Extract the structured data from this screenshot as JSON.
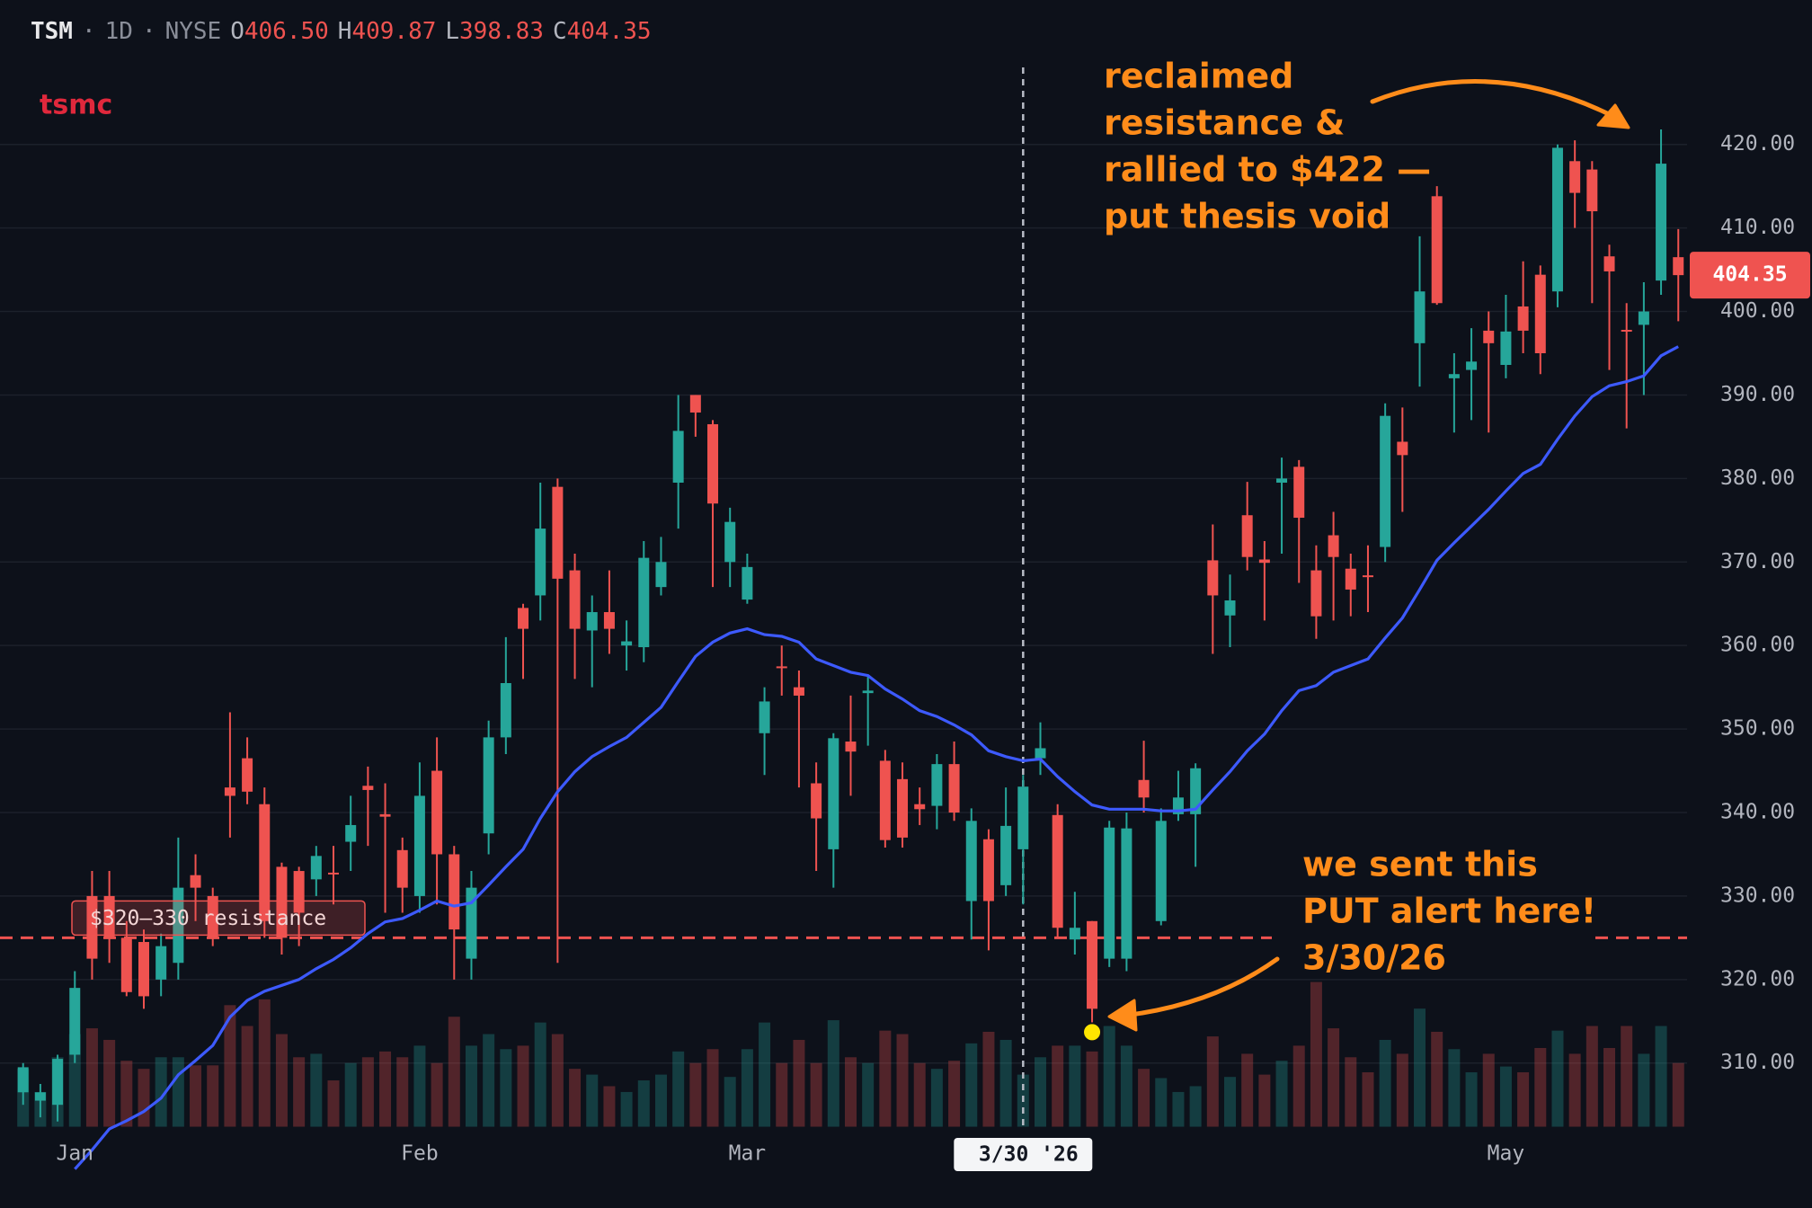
{
  "chart_data": {
    "type": "candlestick",
    "header": {
      "symbol": "TSM",
      "separator": "·",
      "interval": "1D",
      "exchange": "NYSE",
      "ohlc": [
        {
          "key": "O",
          "value": "406.50"
        },
        {
          "key": "H",
          "value": "409.87"
        },
        {
          "key": "L",
          "value": "398.83"
        },
        {
          "key": "C",
          "value": "404.35"
        }
      ]
    },
    "series": [
      {
        "name": "tsmc",
        "name_color": "#e0283c",
        "color_up": "#26a69a",
        "color_down": "#ef5350",
        "open": [
          306.5,
          305.5,
          305,
          311,
          330,
          330,
          325,
          324.5,
          320,
          322,
          332.5,
          330,
          343,
          346.5,
          341,
          333.5,
          333,
          332,
          332.8,
          336.5,
          343.2,
          339.8,
          335.5,
          330,
          345,
          335,
          322.5,
          337.5,
          349,
          364.5,
          366,
          379,
          369,
          361.8,
          364,
          360,
          359.8,
          367,
          379.5,
          390,
          386.5,
          370,
          365.5,
          349.5,
          357.5,
          355,
          343.5,
          335.6,
          348.5,
          354.3,
          346.2,
          344,
          341,
          340.8,
          345.8,
          329.4,
          336.8,
          331.3,
          335.6,
          346.5,
          339.7,
          324.8,
          327,
          322.5,
          322.5,
          343.9,
          327,
          339.8,
          339.8,
          370.2,
          363.6,
          375.6,
          370.3,
          379.5,
          381.4,
          369,
          373.2,
          369.2,
          368.4,
          371.8,
          384.4,
          396.2,
          413.8,
          392,
          393,
          397.7,
          393.6,
          400.6,
          404.4,
          402.4,
          418,
          417,
          406.6,
          397.8,
          398.4,
          403.7,
          406.5
        ],
        "high": [
          310,
          307.5,
          311,
          321,
          333,
          333,
          327,
          326,
          325.5,
          337,
          335,
          331,
          352,
          349,
          343,
          334,
          333.5,
          336,
          336,
          342,
          345.5,
          343.5,
          337,
          346,
          349,
          336,
          333,
          351,
          361,
          365,
          379.5,
          380,
          371,
          366,
          369,
          363,
          372.5,
          373,
          390,
          390,
          387,
          376.5,
          371,
          355,
          360,
          357,
          346,
          349.5,
          354,
          356.5,
          347.5,
          346,
          343,
          347,
          348.5,
          340.5,
          338,
          343,
          344.5,
          350.8,
          341,
          330.5,
          327,
          339,
          340,
          348.6,
          340.5,
          345,
          345.9,
          374.5,
          368.5,
          379.6,
          372.5,
          382.5,
          382.2,
          372,
          376,
          371,
          372,
          389,
          388.5,
          409,
          415,
          395,
          398,
          400,
          402,
          406,
          405.5,
          420,
          420.5,
          418,
          408,
          401,
          403.5,
          421.8,
          409.87
        ],
        "low": [
          305,
          303.5,
          303,
          310,
          320,
          322,
          318,
          316.5,
          318,
          320,
          327,
          324,
          337,
          341,
          325,
          323,
          324,
          330,
          329,
          333,
          336,
          328,
          328,
          328,
          329,
          320,
          320,
          335,
          347,
          356,
          363,
          322,
          356,
          355,
          359,
          357,
          358,
          366,
          374,
          385,
          367,
          367,
          365,
          344.5,
          354,
          343,
          333,
          331,
          342,
          348,
          335.8,
          335.8,
          338.5,
          338,
          339,
          324.8,
          323.5,
          330,
          329,
          344.5,
          325,
          323,
          313,
          321.5,
          321,
          340,
          326.5,
          339,
          333.5,
          359,
          359.8,
          369,
          363,
          371,
          367.5,
          360.8,
          363,
          363.5,
          364,
          370,
          376,
          391,
          400.8,
          385.5,
          387,
          385.5,
          392,
          395,
          392.5,
          400.5,
          410,
          401,
          393,
          386,
          390,
          402,
          398.83
        ],
        "close": [
          309.5,
          306.5,
          310.5,
          319,
          322.5,
          325,
          318.5,
          318,
          324,
          331,
          331,
          325,
          342,
          342.5,
          327,
          325,
          328,
          334.8,
          332.6,
          338.5,
          342.7,
          339.5,
          331,
          342,
          335,
          326,
          331,
          349,
          355.5,
          362,
          374,
          368,
          362,
          364,
          362,
          360.5,
          370.5,
          370,
          385.7,
          387.9,
          377,
          374.8,
          369.4,
          353.3,
          357.3,
          354,
          339.3,
          348.9,
          347.3,
          354.6,
          336.7,
          337,
          340.4,
          345.8,
          340,
          339,
          329.4,
          338.4,
          343.1,
          347.7,
          326.2,
          326.2,
          316.5,
          338.2,
          338.1,
          341.8,
          339,
          341.8,
          345.3,
          366,
          365.4,
          370.6,
          369.9,
          380,
          375.3,
          363.5,
          370.6,
          366.7,
          368.2,
          387.5,
          382.8,
          402.4,
          401,
          392.5,
          394,
          396.2,
          397.6,
          397.7,
          395,
          419.6,
          414.2,
          412,
          404.8,
          397.6,
          400,
          417.7,
          404.35
        ],
        "volume": [
          50,
          30,
          60,
          80,
          85,
          75,
          57,
          50,
          60,
          60,
          53,
          53,
          105,
          87,
          110,
          80,
          60,
          63,
          40,
          55,
          60,
          65,
          60,
          70,
          55,
          95,
          70,
          80,
          67,
          70,
          90,
          80,
          50,
          45,
          35,
          30,
          40,
          45,
          65,
          55,
          67,
          43,
          67,
          90,
          55,
          75,
          55,
          92,
          60,
          55,
          83,
          80,
          55,
          50,
          57,
          72,
          82,
          75,
          45,
          60,
          70,
          70,
          65,
          87,
          70,
          50,
          42,
          30,
          35,
          78,
          43,
          63,
          45,
          57,
          70,
          125,
          85,
          60,
          47,
          75,
          63,
          102,
          82,
          67,
          47,
          63,
          52,
          47,
          68,
          83,
          63,
          87,
          68,
          87,
          63,
          87,
          55
        ]
      }
    ],
    "ma": {
      "color": "#3d5afe",
      "values": [
        null,
        null,
        null,
        297.3,
        299.6,
        302.1,
        303.1,
        304.2,
        305.8,
        308.6,
        310.3,
        312.1,
        315.5,
        317.5,
        318.6,
        319.3,
        320.0,
        321.3,
        322.4,
        323.8,
        325.5,
        326.9,
        327.3,
        328.3,
        329.4,
        328.8,
        329.2,
        331.3,
        333.5,
        335.6,
        339.3,
        342.5,
        344.9,
        346.7,
        347.9,
        349.0,
        350.8,
        352.6,
        355.7,
        358.7,
        360.4,
        361.5,
        362.0,
        361.3,
        361.1,
        360.4,
        358.4,
        357.6,
        356.8,
        356.4,
        354.8,
        353.6,
        352.2,
        351.5,
        350.5,
        349.3,
        347.4,
        346.7,
        346.2,
        346.4,
        344.3,
        342.5,
        340.9,
        340.4,
        340.4,
        340.4,
        340.2,
        340.2,
        340.4,
        342.7,
        344.9,
        347.4,
        349.4,
        352.2,
        354.6,
        355.2,
        356.8,
        357.6,
        358.4,
        360.9,
        363.3,
        366.7,
        370.2,
        372.3,
        374.3,
        376.3,
        378.5,
        380.6,
        381.7,
        384.7,
        387.5,
        389.8,
        391.1,
        391.6,
        392.3,
        394.7,
        395.8
      ]
    },
    "categories": [
      null,
      null,
      null,
      "Jan",
      null,
      null,
      null,
      null,
      null,
      null,
      null,
      null,
      null,
      null,
      null,
      null,
      null,
      null,
      null,
      null,
      null,
      null,
      null,
      "Feb",
      null,
      null,
      null,
      null,
      null,
      null,
      null,
      null,
      null,
      null,
      null,
      null,
      null,
      null,
      null,
      null,
      null,
      null,
      "Mar",
      null,
      null,
      null,
      null,
      null,
      null,
      null,
      null,
      null,
      null,
      null,
      null,
      null,
      null,
      null,
      "3/30 '26",
      null,
      null,
      null,
      null,
      null,
      null,
      null,
      null,
      null,
      null,
      null,
      null,
      null,
      null,
      null,
      null,
      null,
      null,
      null,
      null,
      null,
      null,
      null,
      null,
      null,
      null,
      null,
      "May",
      null,
      null,
      null,
      null,
      null,
      null,
      null,
      null,
      null,
      null
    ],
    "ylim": [
      293,
      430
    ],
    "yticks": [
      {
        "value": 310,
        "label": "310.00"
      },
      {
        "value": 320,
        "label": "320.00"
      },
      {
        "value": 330,
        "label": "330.00"
      },
      {
        "value": 340,
        "label": "340.00"
      },
      {
        "value": 350,
        "label": "350.00"
      },
      {
        "value": 360,
        "label": "360.00"
      },
      {
        "value": 370,
        "label": "370.00"
      },
      {
        "value": 380,
        "label": "380.00"
      },
      {
        "value": 390,
        "label": "390.00"
      },
      {
        "value": 400,
        "label": "400.00"
      },
      {
        "value": 410,
        "label": "410.00"
      },
      {
        "value": 420,
        "label": "420.00"
      }
    ],
    "grid": true,
    "last_price": {
      "value": 404.35,
      "label": "404.35",
      "color": "#ef5350"
    },
    "resistance": {
      "value": 325,
      "label": "$320–330 resistance",
      "color": "#ef5350"
    },
    "crosshair_at": 58,
    "signal": {
      "at": 62,
      "value": 313.7,
      "color": "#ffe600"
    },
    "annotation_color": "#ff8c1a",
    "annotations": [
      {
        "lines": [
          " reclaimed",
          "resistance &",
          "rallied to $422 —",
          "put thesis void"
        ]
      },
      {
        "lines": [
          "we sent this",
          "PUT alert here!",
          "3/30/26"
        ]
      }
    ]
  }
}
